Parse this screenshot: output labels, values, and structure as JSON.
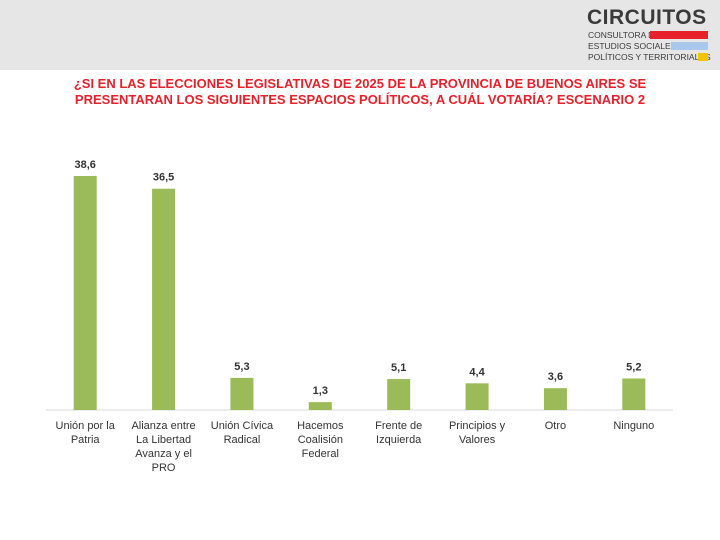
{
  "brand": {
    "name": "CIRCUITOS",
    "lines": [
      "CONSULTORA DE",
      "ESTUDIOS SOCIALES,",
      "POLÍTICOS Y TERRITORIALES"
    ],
    "colors": [
      "#e8202a",
      "#a9c8ec",
      "#f5c400"
    ]
  },
  "title_lines": [
    "¿SI EN LAS ELECCIONES LEGISLATIVAS DE 2025 DE LA PROVINCIA DE BUENOS AIRES SE",
    "PRESENTARAN LOS SIGUIENTES ESPACIOS POLÍTICOS, A CUÁL VOTARÍA? ESCENARIO 2"
  ],
  "chart_data": {
    "type": "bar",
    "categories": [
      [
        "Unión por la",
        "Patria"
      ],
      [
        "Alianza entre",
        "La Libertad",
        "Avanza y el",
        "PRO"
      ],
      [
        "Unión Cívica",
        "Radical"
      ],
      [
        "Hacemos",
        "Coalisión",
        "Federal"
      ],
      [
        "Frente de",
        "Izquierda"
      ],
      [
        "Principios y",
        "Valores"
      ],
      [
        "Otro"
      ],
      [
        "Ninguno"
      ]
    ],
    "values": [
      38.6,
      36.5,
      5.3,
      1.3,
      5.1,
      4.4,
      3.6,
      5.2
    ],
    "value_labels": [
      "38,6",
      "36,5",
      "5,3",
      "1,3",
      "5,1",
      "4,4",
      "3,6",
      "5,2"
    ],
    "bar_color": "#9bbb59",
    "grid": false,
    "legend": "none"
  }
}
